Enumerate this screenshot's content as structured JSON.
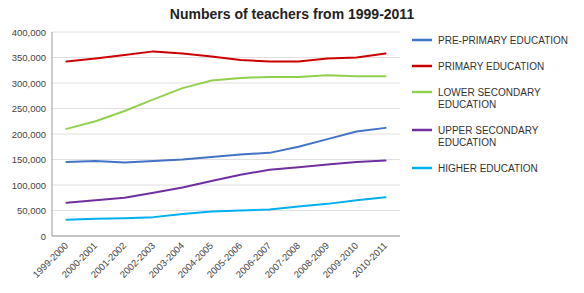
{
  "chart_data": {
    "type": "line",
    "title": "Numbers of teachers from 1999-2011",
    "categories": [
      "1999-2000",
      "2000-2001",
      "2001-2002",
      "2002-2003",
      "2003-2004",
      "2004-2005",
      "2005-2006",
      "2006-2007",
      "2007-2008",
      "2008-2009",
      "2009-2010",
      "2010-2011"
    ],
    "series": [
      {
        "name": "PRE-PRIMARY EDUCATION",
        "color": "#4472C4",
        "values": [
          145000,
          147000,
          144000,
          147000,
          150000,
          155000,
          160000,
          163000,
          175000,
          190000,
          205000,
          212000
        ]
      },
      {
        "name": "PRIMARY EDUCATION",
        "color": "#CC0000",
        "values": [
          342000,
          348000,
          355000,
          362000,
          358000,
          352000,
          345000,
          342000,
          342000,
          348000,
          350000,
          358000
        ]
      },
      {
        "name": "LOWER SECONDARY\nEDUCATION",
        "color": "#92D050",
        "values": [
          210000,
          225000,
          245000,
          268000,
          290000,
          305000,
          310000,
          312000,
          312000,
          315000,
          313000,
          313000
        ]
      },
      {
        "name": "UPPER SECONDARY\nEDUCATION",
        "color": "#7030A0",
        "values": [
          65000,
          70000,
          75000,
          85000,
          95000,
          108000,
          120000,
          130000,
          135000,
          140000,
          145000,
          148000
        ]
      },
      {
        "name": "HIGHER EDUCATION",
        "color": "#00B0F0",
        "values": [
          32000,
          34000,
          35000,
          37000,
          43000,
          48000,
          50000,
          52000,
          58000,
          63000,
          70000,
          76000
        ]
      }
    ],
    "ylim": [
      0,
      400000
    ],
    "yticks": [
      0,
      {
        "value": 50000,
        "label": "50,000"
      },
      {
        "value": 100000,
        "label": "100,000"
      },
      {
        "value": 150000,
        "label": "150,000"
      },
      {
        "value": 200000,
        "label": "200,000"
      },
      {
        "value": 250000,
        "label": "250,000"
      },
      {
        "value": 300000,
        "label": "300,000"
      },
      {
        "value": 350000,
        "label": "350,000"
      },
      {
        "value": 400000,
        "label": "400,000"
      }
    ],
    "grid": true,
    "legend": "right"
  }
}
